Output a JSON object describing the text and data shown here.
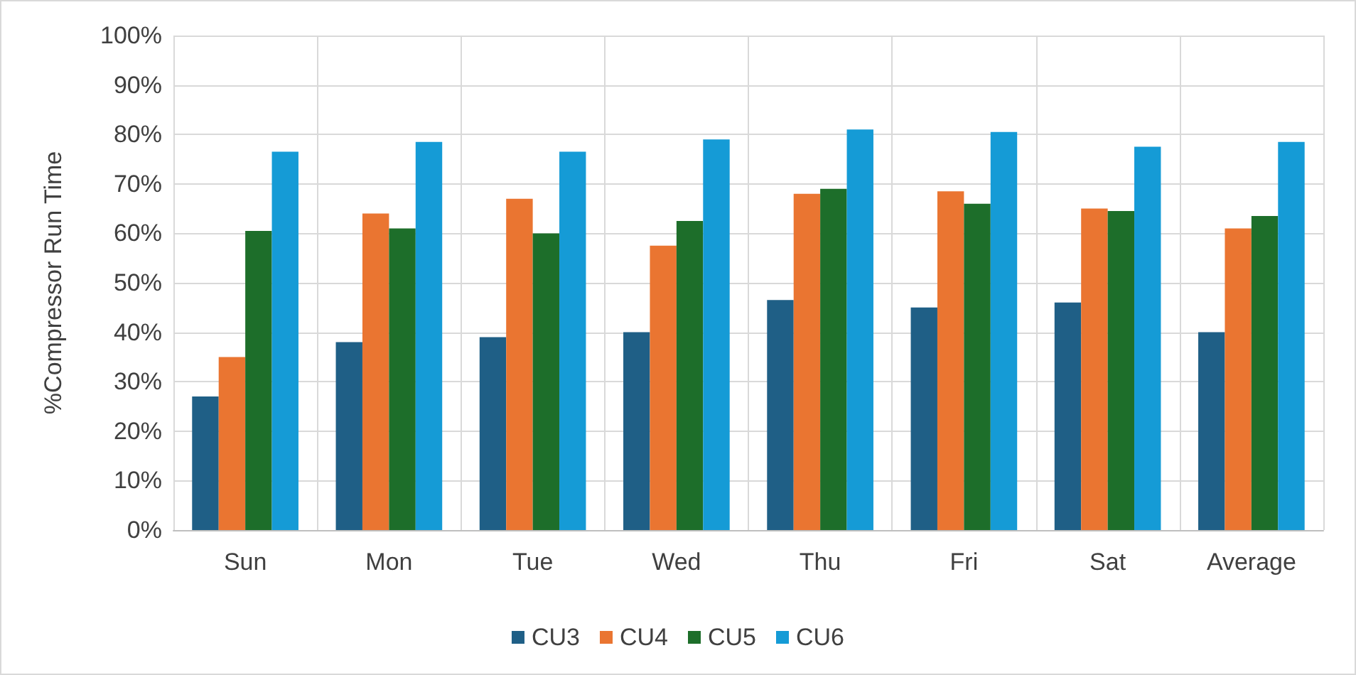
{
  "chart_data": {
    "type": "bar",
    "ylabel": "%Compressor Run Time",
    "categories": [
      "Sun",
      "Mon",
      "Tue",
      "Wed",
      "Thu",
      "Fri",
      "Sat",
      "Average"
    ],
    "series": [
      {
        "name": "CU3",
        "color": "#1f5f86",
        "values": [
          27,
          38,
          39,
          40,
          46.5,
          45,
          46,
          40
        ]
      },
      {
        "name": "CU4",
        "color": "#ea7531",
        "values": [
          35,
          64,
          67,
          57.5,
          68,
          68.5,
          65,
          61
        ]
      },
      {
        "name": "CU5",
        "color": "#1d6e2a",
        "values": [
          60.5,
          61,
          60,
          62.5,
          69,
          66,
          64.5,
          63.5
        ]
      },
      {
        "name": "CU6",
        "color": "#159bd6",
        "values": [
          76.5,
          78.5,
          76.5,
          79,
          81,
          80.5,
          77.5,
          78.5
        ]
      }
    ],
    "ylim": [
      0,
      100
    ],
    "yticks": [
      {
        "value": 0,
        "label": "0%"
      },
      {
        "value": 10,
        "label": "10%"
      },
      {
        "value": 20,
        "label": "20%"
      },
      {
        "value": 30,
        "label": "30%"
      },
      {
        "value": 40,
        "label": "40%"
      },
      {
        "value": 50,
        "label": "50%"
      },
      {
        "value": 60,
        "label": "60%"
      },
      {
        "value": 70,
        "label": "70%"
      },
      {
        "value": 80,
        "label": "80%"
      },
      {
        "value": 90,
        "label": "90%"
      },
      {
        "value": 100,
        "label": "100%"
      }
    ],
    "grid": true,
    "legend": "bottom"
  }
}
